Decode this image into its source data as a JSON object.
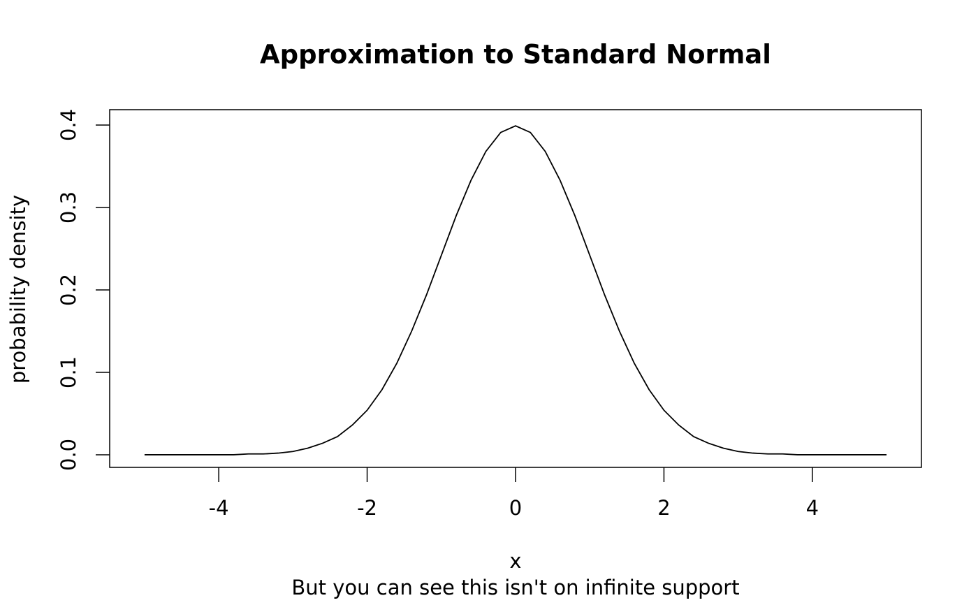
{
  "chart_data": {
    "type": "line",
    "title": "Approximation to Standard Normal",
    "xlabel": "x",
    "ylabel": "probability density",
    "subtitle": "But you can see this isn't on infinite support",
    "x": [
      -5,
      -4.8,
      -4.6,
      -4.4,
      -4.2,
      -4,
      -3.8,
      -3.6,
      -3.4,
      -3.2,
      -3,
      -2.8,
      -2.6,
      -2.4,
      -2.2,
      -2,
      -1.8,
      -1.6,
      -1.4,
      -1.2,
      -1,
      -0.8,
      -0.6,
      -0.4,
      -0.2,
      0,
      0.2,
      0.4,
      0.6,
      0.8,
      1,
      1.2,
      1.4,
      1.6,
      1.8,
      2,
      2.2,
      2.4,
      2.6,
      2.8,
      3,
      3.2,
      3.4,
      3.6,
      3.8,
      4,
      4.2,
      4.4,
      4.6,
      4.8,
      5
    ],
    "values": [
      0,
      0,
      0,
      0,
      0,
      0,
      0,
      0.001,
      0.001,
      0.002,
      0.004,
      0.008,
      0.014,
      0.022,
      0.036,
      0.054,
      0.079,
      0.111,
      0.15,
      0.194,
      0.242,
      0.29,
      0.333,
      0.368,
      0.391,
      0.399,
      0.391,
      0.368,
      0.333,
      0.29,
      0.242,
      0.194,
      0.15,
      0.111,
      0.079,
      0.054,
      0.036,
      0.022,
      0.014,
      0.008,
      0.004,
      0.002,
      0.001,
      0.001,
      0,
      0,
      0,
      0,
      0,
      0,
      0
    ],
    "color": "#000000",
    "xlim": [
      -5.47,
      5.47
    ],
    "ylim": [
      -0.0153,
      0.4186
    ],
    "xticks": [
      -4,
      -2,
      0,
      2,
      4
    ],
    "yticks": [
      {
        "value": 0,
        "label": "0.0"
      },
      0.1,
      0.2,
      0.3,
      0.4
    ]
  }
}
